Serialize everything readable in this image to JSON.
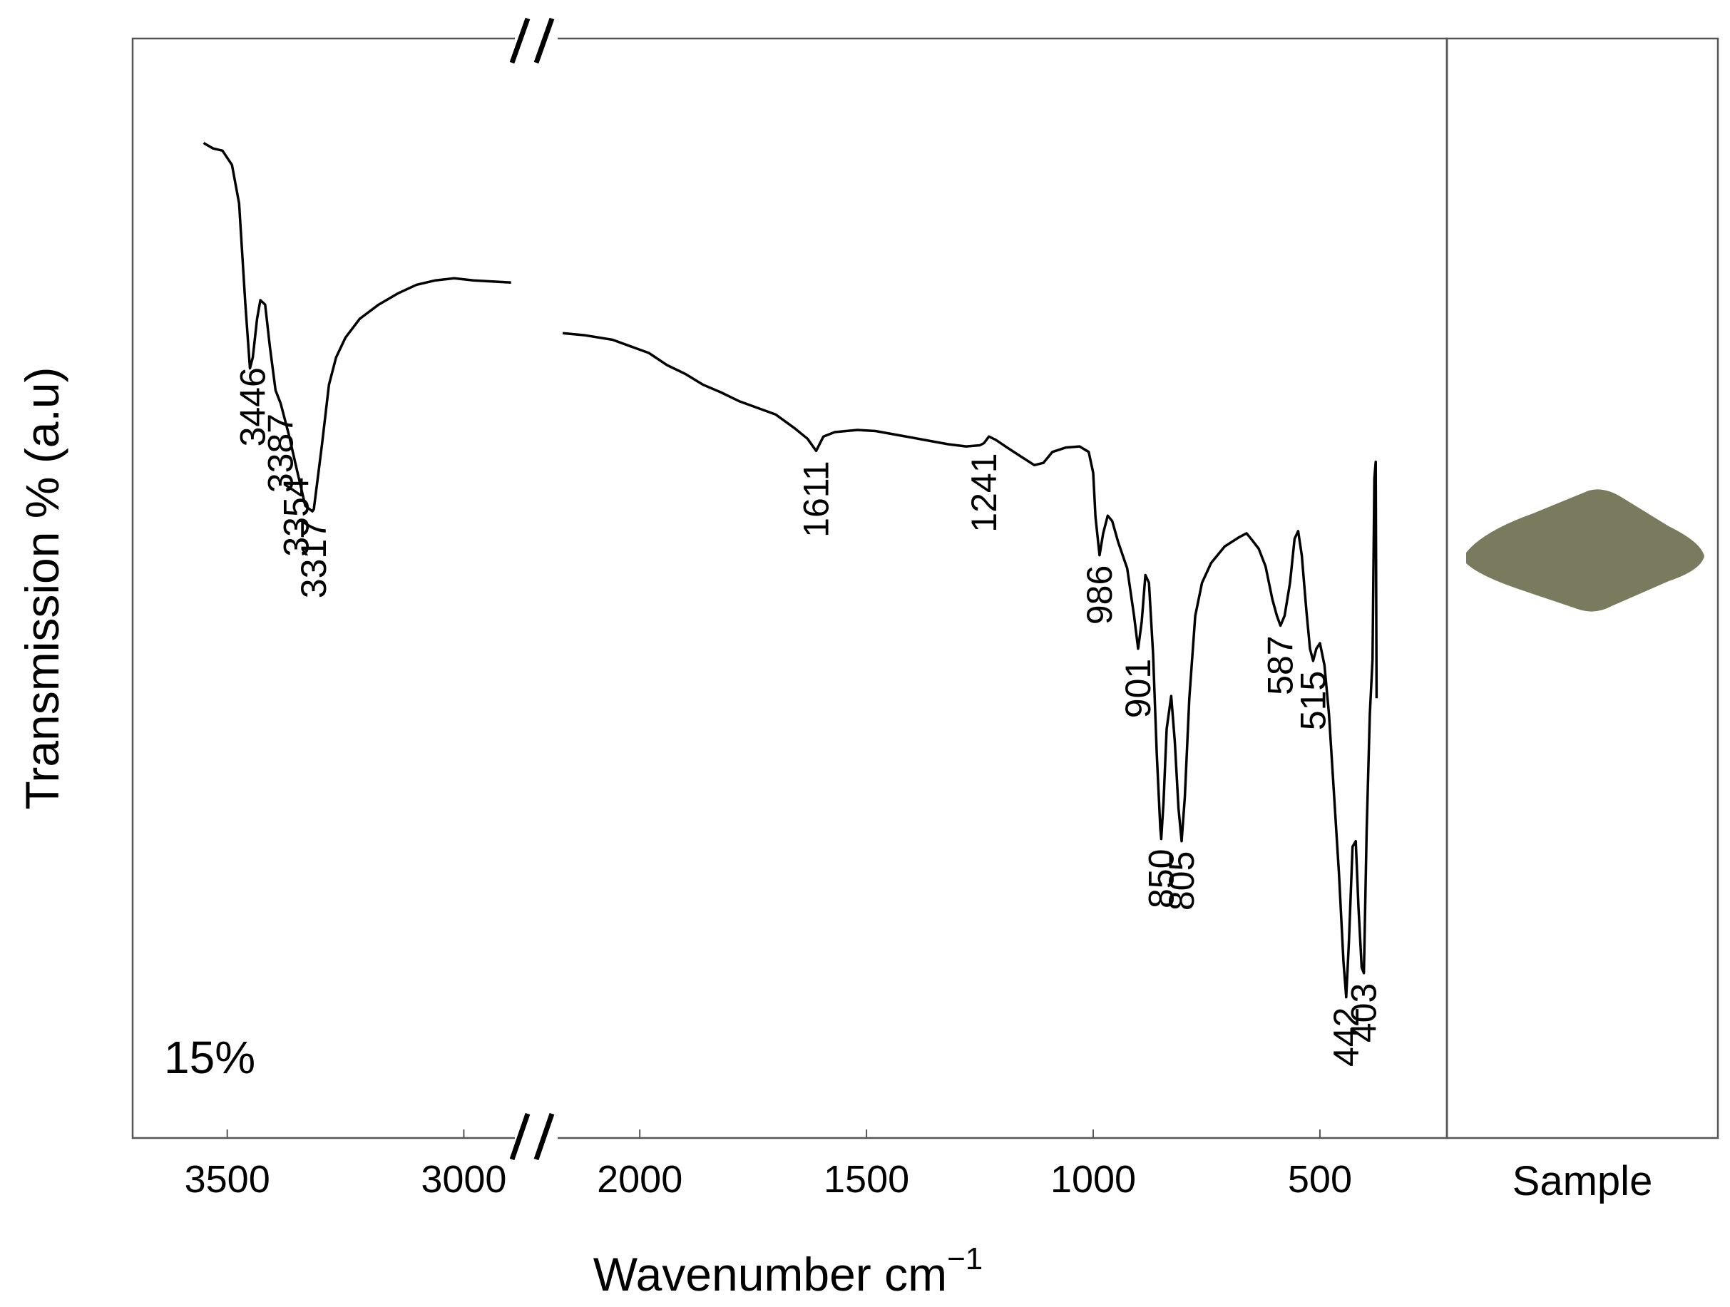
{
  "chart_data": {
    "type": "line",
    "title": "",
    "panel_label": "15%",
    "xlabel": "Wavenumber cm",
    "xlabel_superscript": "−1",
    "ylabel": "Transmission % (a.u)",
    "axis_break": "//",
    "side_panel_label": "Sample",
    "sample_swatch_color": "#7a7a5e",
    "line_color": "#000000",
    "segments": [
      {
        "name": "high",
        "xlim": [
          3700,
          2880
        ],
        "ylim": [
          0,
          100
        ],
        "ticks": [
          3500,
          3000
        ],
        "tick_labels": [
          "3500",
          "3000"
        ],
        "points": [
          [
            3550,
            90.5
          ],
          [
            3530,
            90.0
          ],
          [
            3510,
            89.8
          ],
          [
            3490,
            88.5
          ],
          [
            3475,
            85.0
          ],
          [
            3462,
            76.0
          ],
          [
            3452,
            70.0
          ],
          [
            3446,
            71.0
          ],
          [
            3437,
            74.5
          ],
          [
            3430,
            76.2
          ],
          [
            3420,
            75.8
          ],
          [
            3410,
            72.0
          ],
          [
            3398,
            68.0
          ],
          [
            3387,
            66.8
          ],
          [
            3370,
            64.0
          ],
          [
            3354,
            61.0
          ],
          [
            3335,
            57.5
          ],
          [
            3320,
            57.0
          ],
          [
            3317,
            57.2
          ],
          [
            3300,
            63.0
          ],
          [
            3285,
            68.5
          ],
          [
            3270,
            71.0
          ],
          [
            3250,
            72.8
          ],
          [
            3220,
            74.5
          ],
          [
            3180,
            75.8
          ],
          [
            3140,
            76.8
          ],
          [
            3100,
            77.6
          ],
          [
            3060,
            78.0
          ],
          [
            3020,
            78.2
          ],
          [
            2980,
            78.0
          ],
          [
            2940,
            77.9
          ],
          [
            2900,
            77.8
          ]
        ]
      },
      {
        "name": "low",
        "xlim": [
          2200,
          220
        ],
        "ylim": [
          0,
          100
        ],
        "ticks": [
          2000,
          1500,
          1000,
          500
        ],
        "tick_labels": [
          "2000",
          "1500",
          "1000",
          "500"
        ],
        "points": [
          [
            2170,
            73.2
          ],
          [
            2120,
            73.0
          ],
          [
            2060,
            72.6
          ],
          [
            2020,
            72.0
          ],
          [
            1980,
            71.4
          ],
          [
            1940,
            70.3
          ],
          [
            1900,
            69.5
          ],
          [
            1860,
            68.5
          ],
          [
            1820,
            67.8
          ],
          [
            1780,
            67.0
          ],
          [
            1740,
            66.4
          ],
          [
            1700,
            65.8
          ],
          [
            1660,
            64.6
          ],
          [
            1630,
            63.6
          ],
          [
            1611,
            62.5
          ],
          [
            1595,
            63.8
          ],
          [
            1570,
            64.2
          ],
          [
            1520,
            64.4
          ],
          [
            1480,
            64.3
          ],
          [
            1440,
            64.0
          ],
          [
            1400,
            63.7
          ],
          [
            1360,
            63.4
          ],
          [
            1320,
            63.1
          ],
          [
            1280,
            62.9
          ],
          [
            1250,
            63.0
          ],
          [
            1241,
            63.2
          ],
          [
            1230,
            63.8
          ],
          [
            1215,
            63.5
          ],
          [
            1190,
            62.8
          ],
          [
            1160,
            62.0
          ],
          [
            1130,
            61.2
          ],
          [
            1110,
            61.4
          ],
          [
            1090,
            62.4
          ],
          [
            1060,
            62.8
          ],
          [
            1030,
            62.9
          ],
          [
            1010,
            62.4
          ],
          [
            1000,
            60.5
          ],
          [
            995,
            56.5
          ],
          [
            986,
            53.0
          ],
          [
            978,
            55.0
          ],
          [
            968,
            56.6
          ],
          [
            958,
            56.1
          ],
          [
            945,
            54.2
          ],
          [
            925,
            51.8
          ],
          [
            910,
            47.5
          ],
          [
            901,
            44.5
          ],
          [
            893,
            47.0
          ],
          [
            885,
            51.2
          ],
          [
            877,
            50.5
          ],
          [
            868,
            44.0
          ],
          [
            860,
            35.0
          ],
          [
            852,
            28.2
          ],
          [
            850,
            27.2
          ],
          [
            845,
            30.5
          ],
          [
            838,
            37.2
          ],
          [
            828,
            40.2
          ],
          [
            820,
            36.0
          ],
          [
            812,
            30.0
          ],
          [
            805,
            27.0
          ],
          [
            798,
            31.0
          ],
          [
            788,
            40.0
          ],
          [
            775,
            47.5
          ],
          [
            760,
            50.5
          ],
          [
            740,
            52.3
          ],
          [
            710,
            53.8
          ],
          [
            680,
            54.6
          ],
          [
            662,
            55.0
          ],
          [
            650,
            54.4
          ],
          [
            635,
            53.6
          ],
          [
            620,
            52.0
          ],
          [
            605,
            49.0
          ],
          [
            595,
            47.5
          ],
          [
            587,
            46.6
          ],
          [
            578,
            47.5
          ],
          [
            566,
            50.5
          ],
          [
            556,
            54.5
          ],
          [
            548,
            55.2
          ],
          [
            540,
            53.0
          ],
          [
            530,
            48.0
          ],
          [
            522,
            44.5
          ],
          [
            515,
            43.4
          ],
          [
            508,
            44.5
          ],
          [
            500,
            45.0
          ],
          [
            490,
            43.0
          ],
          [
            480,
            38.5
          ],
          [
            470,
            32.0
          ],
          [
            458,
            24.0
          ],
          [
            448,
            16.0
          ],
          [
            442,
            12.8
          ],
          [
            436,
            18.0
          ],
          [
            428,
            26.5
          ],
          [
            421,
            27.0
          ],
          [
            415,
            21.0
          ],
          [
            408,
            15.5
          ],
          [
            403,
            15.0
          ],
          [
            397,
            28.0
          ],
          [
            390,
            38.5
          ],
          [
            384,
            43.5
          ],
          [
            380,
            60.0
          ],
          [
            377,
            61.5
          ],
          [
            375,
            40.0
          ]
        ]
      }
    ],
    "peak_labels": [
      {
        "segment": "high",
        "x": 3446,
        "text": "3446"
      },
      {
        "segment": "high",
        "x": 3387,
        "text": "3387"
      },
      {
        "segment": "high",
        "x": 3354,
        "text": "3354"
      },
      {
        "segment": "high",
        "x": 3317,
        "text": "3317"
      },
      {
        "segment": "low",
        "x": 1611,
        "text": "1611"
      },
      {
        "segment": "low",
        "x": 1241,
        "text": "1241"
      },
      {
        "segment": "low",
        "x": 986,
        "text": "986"
      },
      {
        "segment": "low",
        "x": 901,
        "text": "901"
      },
      {
        "segment": "low",
        "x": 850,
        "text": "850"
      },
      {
        "segment": "low",
        "x": 805,
        "text": "805"
      },
      {
        "segment": "low",
        "x": 587,
        "text": "587"
      },
      {
        "segment": "low",
        "x": 515,
        "text": "515"
      },
      {
        "segment": "low",
        "x": 442,
        "text": "442"
      },
      {
        "segment": "low",
        "x": 403,
        "text": "403"
      }
    ]
  }
}
